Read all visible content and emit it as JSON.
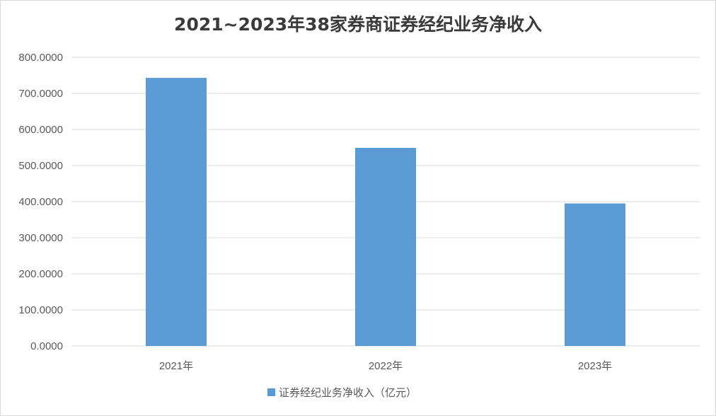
{
  "chart_data": {
    "type": "bar",
    "title": "2021~2023年38家券商证券经纪业务净收入",
    "categories": [
      "2021年",
      "2022年",
      "2023年"
    ],
    "series": [
      {
        "name": "证券经纪业务净收入（亿元）",
        "color": "#5b9bd5",
        "values": [
          743,
          549,
          395
        ]
      }
    ],
    "y_ticks": [
      "0.0000",
      "100.0000",
      "200.0000",
      "300.0000",
      "400.0000",
      "500.0000",
      "600.0000",
      "700.0000",
      "800.0000"
    ],
    "ylim": [
      0,
      800
    ],
    "grid": true,
    "gridline_color": "#d9d9d9",
    "legend_position": "bottom",
    "xlabel": "",
    "ylabel": ""
  }
}
